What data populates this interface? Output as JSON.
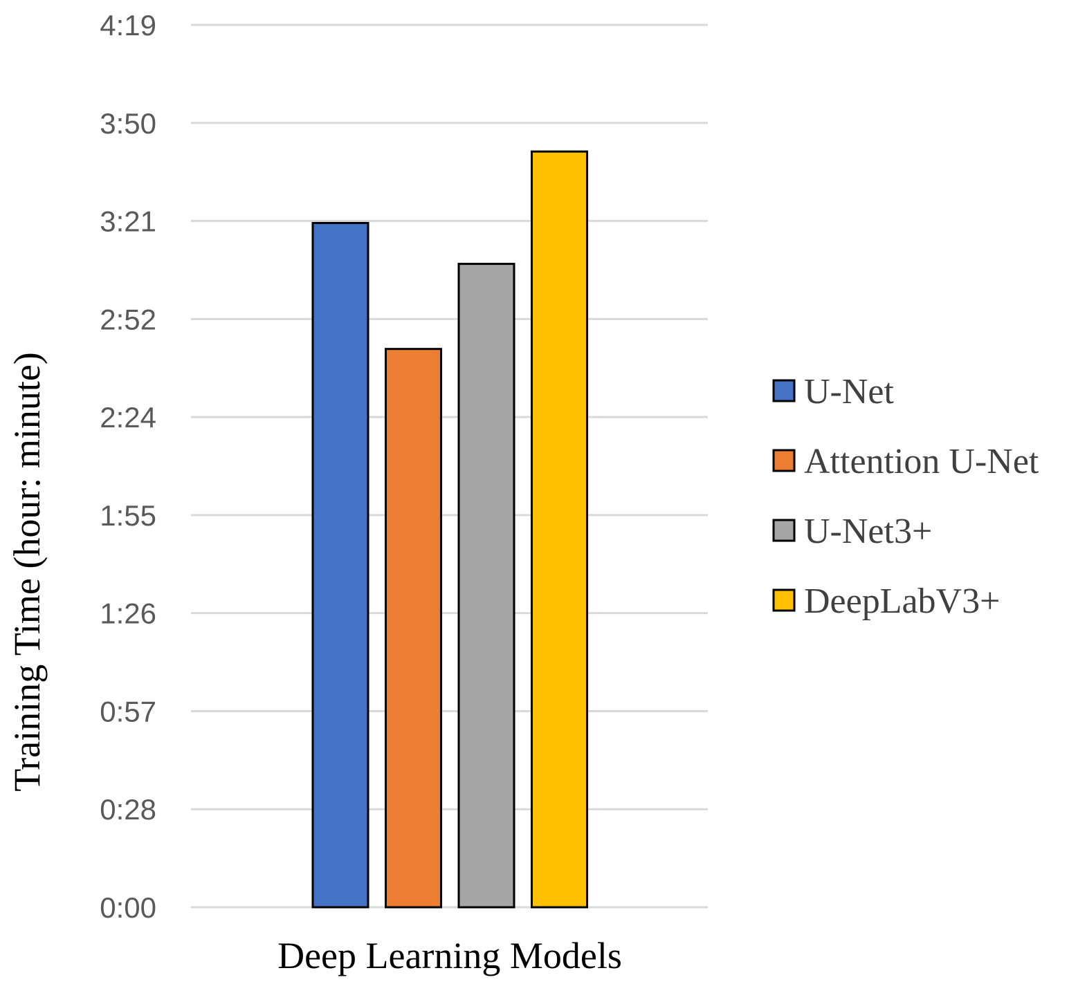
{
  "chart_data": {
    "type": "bar",
    "title": "",
    "xlabel": "Deep Learning Models",
    "ylabel": "Training Time (hour: minute)",
    "ylim_minutes": [
      0,
      259
    ],
    "yticks": [
      {
        "label": "0:00",
        "minutes": 0
      },
      {
        "label": "0:28",
        "minutes": 28.8
      },
      {
        "label": "0:57",
        "minutes": 57.6
      },
      {
        "label": "1:26",
        "minutes": 86.4
      },
      {
        "label": "1:55",
        "minutes": 115.2
      },
      {
        "label": "2:24",
        "minutes": 144
      },
      {
        "label": "2:52",
        "minutes": 172.8
      },
      {
        "label": "3:21",
        "minutes": 201.6
      },
      {
        "label": "3:50",
        "minutes": 230.4
      },
      {
        "label": "4:19",
        "minutes": 259.2
      }
    ],
    "grid": true,
    "legend_position": "right",
    "series": [
      {
        "name": "U-Net",
        "value_minutes": 201,
        "color": "#4472C4"
      },
      {
        "name": "Attention U-Net",
        "value_minutes": 164,
        "color": "#ED7D31"
      },
      {
        "name": "U-Net3+",
        "value_minutes": 189,
        "color": "#A5A5A5"
      },
      {
        "name": "DeepLabV3+",
        "value_minutes": 222,
        "color": "#FFC000"
      }
    ]
  }
}
